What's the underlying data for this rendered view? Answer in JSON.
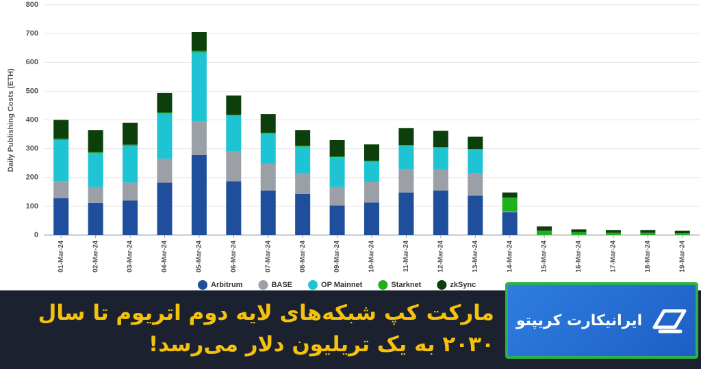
{
  "chart_data": {
    "type": "stacked-bar",
    "ylabel": "Daily Publishing Costs (ETH)",
    "categories": [
      "01-Mar-24",
      "02-Mar-24",
      "03-Mar-24",
      "04-Mar-24",
      "05-Mar-24",
      "06-Mar-24",
      "07-Mar-24",
      "08-Mar-24",
      "09-Mar-24",
      "10-Mar-24",
      "11-Mar-24",
      "12-Mar-24",
      "13-Mar-24",
      "14-Mar-24",
      "15-Mar-24",
      "16-Mar-24",
      "17-Mar-24",
      "18-Mar-24",
      "19-Mar-24"
    ],
    "series": [
      {
        "name": "Arbitrum",
        "color": "#1f4e9c",
        "values": [
          128,
          112,
          120,
          182,
          278,
          187,
          155,
          143,
          103,
          113,
          148,
          155,
          137,
          80,
          0,
          0,
          0,
          0,
          0
        ]
      },
      {
        "name": "BASE",
        "color": "#9aa0a6",
        "values": [
          59,
          55,
          62,
          83,
          117,
          105,
          93,
          70,
          64,
          72,
          82,
          73,
          78,
          2,
          0,
          0,
          0,
          0,
          0
        ]
      },
      {
        "name": "OP Mainnet",
        "color": "#1fc4d4",
        "values": [
          143,
          118,
          128,
          157,
          240,
          123,
          104,
          94,
          103,
          70,
          80,
          75,
          82,
          0,
          0,
          0,
          0,
          0,
          0
        ]
      },
      {
        "name": "Starknet",
        "color": "#1eb01e",
        "values": [
          5,
          3,
          4,
          4,
          5,
          3,
          3,
          3,
          3,
          3,
          3,
          3,
          2,
          48,
          15,
          10,
          8,
          8,
          7
        ]
      },
      {
        "name": "zkSync",
        "color": "#0c3f0c",
        "values": [
          65,
          77,
          76,
          68,
          65,
          67,
          65,
          55,
          57,
          57,
          59,
          56,
          43,
          18,
          15,
          10,
          9,
          9,
          8
        ]
      }
    ],
    "ylim": [
      0,
      800
    ],
    "yticks": [
      0,
      100,
      200,
      300,
      400,
      500,
      600,
      700,
      800
    ],
    "grid": true
  },
  "banner": {
    "headline": [
      "مارکت کپ شبکه‌های لایه دوم اتریوم تا سال",
      "۲۰۳۰ به یک تریلیون دلار می‌رسد!"
    ],
    "brand": "ایرانیکارت کریپتو"
  }
}
